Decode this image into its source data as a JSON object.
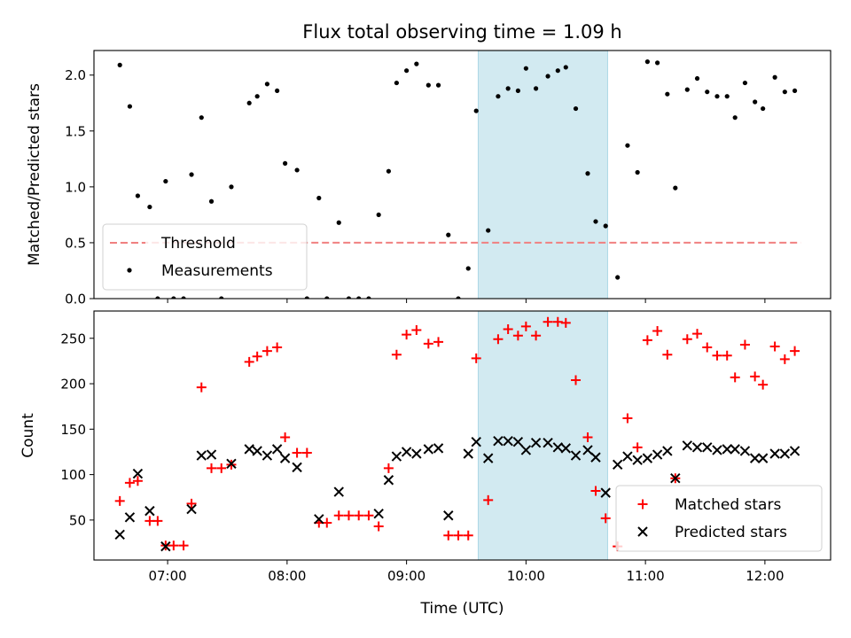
{
  "figure": {
    "title": "Flux total observing time = 1.09 h"
  },
  "colors": {
    "highlight": "#add8e6",
    "threshold": "#f08080",
    "matched": "#ff0000",
    "predicted": "#000000",
    "measurement": "#000000"
  },
  "chart_data": [
    {
      "type": "scatter",
      "title": "Flux total observing time = 1.09 h",
      "xlabel": "",
      "ylabel": "Matched/Predicted stars",
      "x_axis": "time",
      "xlim": [
        "06:23",
        "12:33"
      ],
      "xticks": [
        "07:00",
        "08:00",
        "09:00",
        "10:00",
        "11:00",
        "12:00"
      ],
      "ylim": [
        0,
        2.22
      ],
      "yticks": [
        "0.0",
        "0.5",
        "1.0",
        "1.5",
        "2.0"
      ],
      "highlight_span": [
        "09:36",
        "10:41"
      ],
      "grid": false,
      "legend_position": "lower-left",
      "threshold": {
        "name": "Threshold",
        "value": 0.5,
        "x_range": [
          "06:36",
          "12:18"
        ],
        "style": "dashed"
      },
      "series": [
        {
          "name": "Measurements",
          "marker": "dot",
          "points": [
            [
              "06:36",
              2.09
            ],
            [
              "06:41",
              1.72
            ],
            [
              "06:45",
              0.92
            ],
            [
              "06:51",
              0.82
            ],
            [
              "06:55",
              0.0
            ],
            [
              "06:59",
              1.05
            ],
            [
              "07:03",
              0.0
            ],
            [
              "07:08",
              0.0
            ],
            [
              "07:12",
              1.11
            ],
            [
              "07:17",
              1.62
            ],
            [
              "07:22",
              0.87
            ],
            [
              "07:27",
              0.0
            ],
            [
              "07:32",
              1.0
            ],
            [
              "07:41",
              1.75
            ],
            [
              "07:45",
              1.81
            ],
            [
              "07:50",
              1.92
            ],
            [
              "07:55",
              1.86
            ],
            [
              "07:59",
              1.21
            ],
            [
              "08:05",
              1.15
            ],
            [
              "08:10",
              0.0
            ],
            [
              "08:16",
              0.9
            ],
            [
              "08:20",
              0.0
            ],
            [
              "08:26",
              0.68
            ],
            [
              "08:31",
              0.0
            ],
            [
              "08:36",
              0.0
            ],
            [
              "08:41",
              0.0
            ],
            [
              "08:46",
              0.75
            ],
            [
              "08:51",
              1.14
            ],
            [
              "08:55",
              1.93
            ],
            [
              "09:00",
              2.04
            ],
            [
              "09:05",
              2.1
            ],
            [
              "09:11",
              1.91
            ],
            [
              "09:16",
              1.91
            ],
            [
              "09:21",
              0.57
            ],
            [
              "09:26",
              0.0
            ],
            [
              "09:31",
              0.27
            ],
            [
              "09:35",
              1.68
            ],
            [
              "09:41",
              0.61
            ],
            [
              "09:46",
              1.81
            ],
            [
              "09:51",
              1.88
            ],
            [
              "09:56",
              1.86
            ],
            [
              "10:00",
              2.06
            ],
            [
              "10:05",
              1.88
            ],
            [
              "10:11",
              1.99
            ],
            [
              "10:16",
              2.04
            ],
            [
              "10:20",
              2.07
            ],
            [
              "10:25",
              1.7
            ],
            [
              "10:31",
              1.12
            ],
            [
              "10:35",
              0.69
            ],
            [
              "10:40",
              0.65
            ],
            [
              "10:46",
              0.19
            ],
            [
              "10:51",
              1.37
            ],
            [
              "10:56",
              1.13
            ],
            [
              "11:01",
              2.12
            ],
            [
              "11:06",
              2.11
            ],
            [
              "11:11",
              1.83
            ],
            [
              "11:15",
              0.99
            ],
            [
              "11:21",
              1.87
            ],
            [
              "11:26",
              1.97
            ],
            [
              "11:31",
              1.85
            ],
            [
              "11:36",
              1.81
            ],
            [
              "11:41",
              1.81
            ],
            [
              "11:45",
              1.62
            ],
            [
              "11:50",
              1.93
            ],
            [
              "11:55",
              1.76
            ],
            [
              "11:59",
              1.7
            ],
            [
              "12:05",
              1.98
            ],
            [
              "12:10",
              1.85
            ],
            [
              "12:15",
              1.86
            ]
          ]
        }
      ]
    },
    {
      "type": "scatter",
      "title": "",
      "xlabel": "Time (UTC)",
      "ylabel": "Count",
      "x_axis": "time",
      "xlim": [
        "06:23",
        "12:33"
      ],
      "xticks": [
        "07:00",
        "08:00",
        "09:00",
        "10:00",
        "11:00",
        "12:00"
      ],
      "ylim": [
        6,
        280
      ],
      "yticks": [
        "50",
        "100",
        "150",
        "200",
        "250"
      ],
      "highlight_span": [
        "09:36",
        "10:41"
      ],
      "grid": false,
      "legend_position": "lower-right",
      "series": [
        {
          "name": "Matched stars",
          "marker": "plus",
          "points": [
            [
              "06:36",
              71
            ],
            [
              "06:41",
              91
            ],
            [
              "06:45",
              93
            ],
            [
              "06:51",
              49
            ],
            [
              "06:55",
              49
            ],
            [
              "06:59",
              22
            ],
            [
              "07:03",
              22
            ],
            [
              "07:08",
              22
            ],
            [
              "07:12",
              68
            ],
            [
              "07:17",
              196
            ],
            [
              "07:22",
              107
            ],
            [
              "07:27",
              107
            ],
            [
              "07:32",
              111
            ],
            [
              "07:41",
              224
            ],
            [
              "07:45",
              230
            ],
            [
              "07:50",
              236
            ],
            [
              "07:55",
              240
            ],
            [
              "07:59",
              141
            ],
            [
              "08:05",
              124
            ],
            [
              "08:10",
              124
            ],
            [
              "08:16",
              47
            ],
            [
              "08:20",
              47
            ],
            [
              "08:26",
              55
            ],
            [
              "08:31",
              55
            ],
            [
              "08:36",
              55
            ],
            [
              "08:41",
              55
            ],
            [
              "08:46",
              43
            ],
            [
              "08:51",
              107
            ],
            [
              "08:55",
              232
            ],
            [
              "09:00",
              254
            ],
            [
              "09:05",
              259
            ],
            [
              "09:11",
              244
            ],
            [
              "09:16",
              246
            ],
            [
              "09:21",
              33
            ],
            [
              "09:26",
              33
            ],
            [
              "09:31",
              33
            ],
            [
              "09:35",
              228
            ],
            [
              "09:41",
              72
            ],
            [
              "09:46",
              249
            ],
            [
              "09:51",
              260
            ],
            [
              "09:56",
              253
            ],
            [
              "10:00",
              263
            ],
            [
              "10:05",
              253
            ],
            [
              "10:11",
              268
            ],
            [
              "10:16",
              268
            ],
            [
              "10:20",
              267
            ],
            [
              "10:25",
              204
            ],
            [
              "10:31",
              141
            ],
            [
              "10:35",
              82
            ],
            [
              "10:40",
              52
            ],
            [
              "10:46",
              21
            ],
            [
              "10:51",
              162
            ],
            [
              "10:56",
              130
            ],
            [
              "11:01",
              248
            ],
            [
              "11:06",
              258
            ],
            [
              "11:11",
              232
            ],
            [
              "11:15",
              96
            ],
            [
              "11:21",
              249
            ],
            [
              "11:26",
              255
            ],
            [
              "11:31",
              240
            ],
            [
              "11:36",
              231
            ],
            [
              "11:41",
              231
            ],
            [
              "11:45",
              207
            ],
            [
              "11:50",
              243
            ],
            [
              "11:55",
              208
            ],
            [
              "11:59",
              199
            ],
            [
              "12:05",
              241
            ],
            [
              "12:10",
              227
            ],
            [
              "12:15",
              236
            ]
          ]
        },
        {
          "name": "Predicted stars",
          "marker": "x",
          "points": [
            [
              "06:36",
              34
            ],
            [
              "06:41",
              53
            ],
            [
              "06:45",
              101
            ],
            [
              "06:51",
              60
            ],
            [
              "06:59",
              21
            ],
            [
              "07:12",
              62
            ],
            [
              "07:17",
              121
            ],
            [
              "07:22",
              122
            ],
            [
              "07:32",
              112
            ],
            [
              "07:41",
              128
            ],
            [
              "07:45",
              126
            ],
            [
              "07:50",
              121
            ],
            [
              "07:55",
              128
            ],
            [
              "07:59",
              118
            ],
            [
              "08:05",
              108
            ],
            [
              "08:16",
              51
            ],
            [
              "08:26",
              81
            ],
            [
              "08:46",
              57
            ],
            [
              "08:51",
              94
            ],
            [
              "08:55",
              120
            ],
            [
              "09:00",
              125
            ],
            [
              "09:05",
              123
            ],
            [
              "09:11",
              128
            ],
            [
              "09:16",
              129
            ],
            [
              "09:21",
              55
            ],
            [
              "09:31",
              123
            ],
            [
              "09:35",
              136
            ],
            [
              "09:41",
              118
            ],
            [
              "09:46",
              137
            ],
            [
              "09:51",
              137
            ],
            [
              "09:56",
              136
            ],
            [
              "10:00",
              127
            ],
            [
              "10:05",
              135
            ],
            [
              "10:11",
              135
            ],
            [
              "10:16",
              130
            ],
            [
              "10:20",
              129
            ],
            [
              "10:25",
              121
            ],
            [
              "10:31",
              127
            ],
            [
              "10:35",
              119
            ],
            [
              "10:40",
              80
            ],
            [
              "10:46",
              111
            ],
            [
              "10:51",
              120
            ],
            [
              "10:56",
              116
            ],
            [
              "11:01",
              118
            ],
            [
              "11:06",
              122
            ],
            [
              "11:11",
              126
            ],
            [
              "11:15",
              96
            ],
            [
              "11:21",
              132
            ],
            [
              "11:26",
              130
            ],
            [
              "11:31",
              130
            ],
            [
              "11:36",
              127
            ],
            [
              "11:41",
              128
            ],
            [
              "11:45",
              128
            ],
            [
              "11:50",
              126
            ],
            [
              "11:55",
              118
            ],
            [
              "11:59",
              118
            ],
            [
              "12:05",
              123
            ],
            [
              "12:10",
              123
            ],
            [
              "12:15",
              126
            ]
          ]
        }
      ]
    }
  ]
}
